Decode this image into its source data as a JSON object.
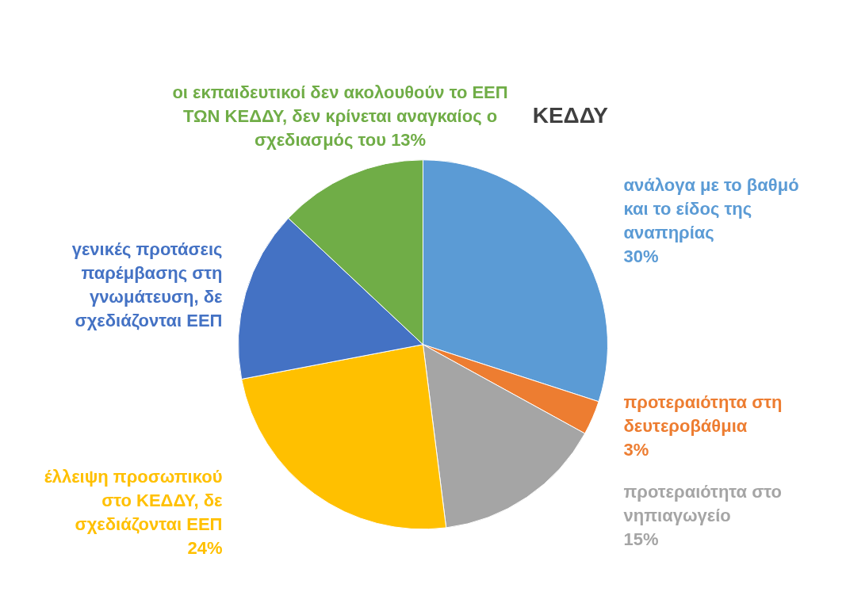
{
  "chart_data": {
    "type": "pie",
    "title": "ΚΕΔΔΥ",
    "categories": [
      "ανάλογα με το βαθμό και το είδος της αναπηρίας",
      "προτεραιότητα στη δευτεροβάθμια",
      "προτεραιότητα στο νηπιαγωγείο",
      "έλλειψη προσωπικού στο ΚΕΔΔΥ, δε σχεδιάζονται ΕΕΠ",
      "γενικές προτάσεις παρέμβασης στη γνωμάτευση, δε σχεδιάζονται ΕΕΠ",
      "οι εκπαιδευτικοί δεν ακολουθούν το ΕΕΠ ΤΩΝ ΚΕΔΔΥ, δεν κρίνεται αναγκαίος ο σχεδιασμός του"
    ],
    "values": [
      30,
      3,
      15,
      24,
      15,
      13
    ],
    "value_labels": [
      "30%",
      "3%",
      "15%",
      "24%",
      null,
      "13%"
    ],
    "colors": [
      "#5b9bd5",
      "#ed7d31",
      "#a5a5a5",
      "#ffc000",
      "#4472c4",
      "#70ad47"
    ],
    "legend": false
  }
}
